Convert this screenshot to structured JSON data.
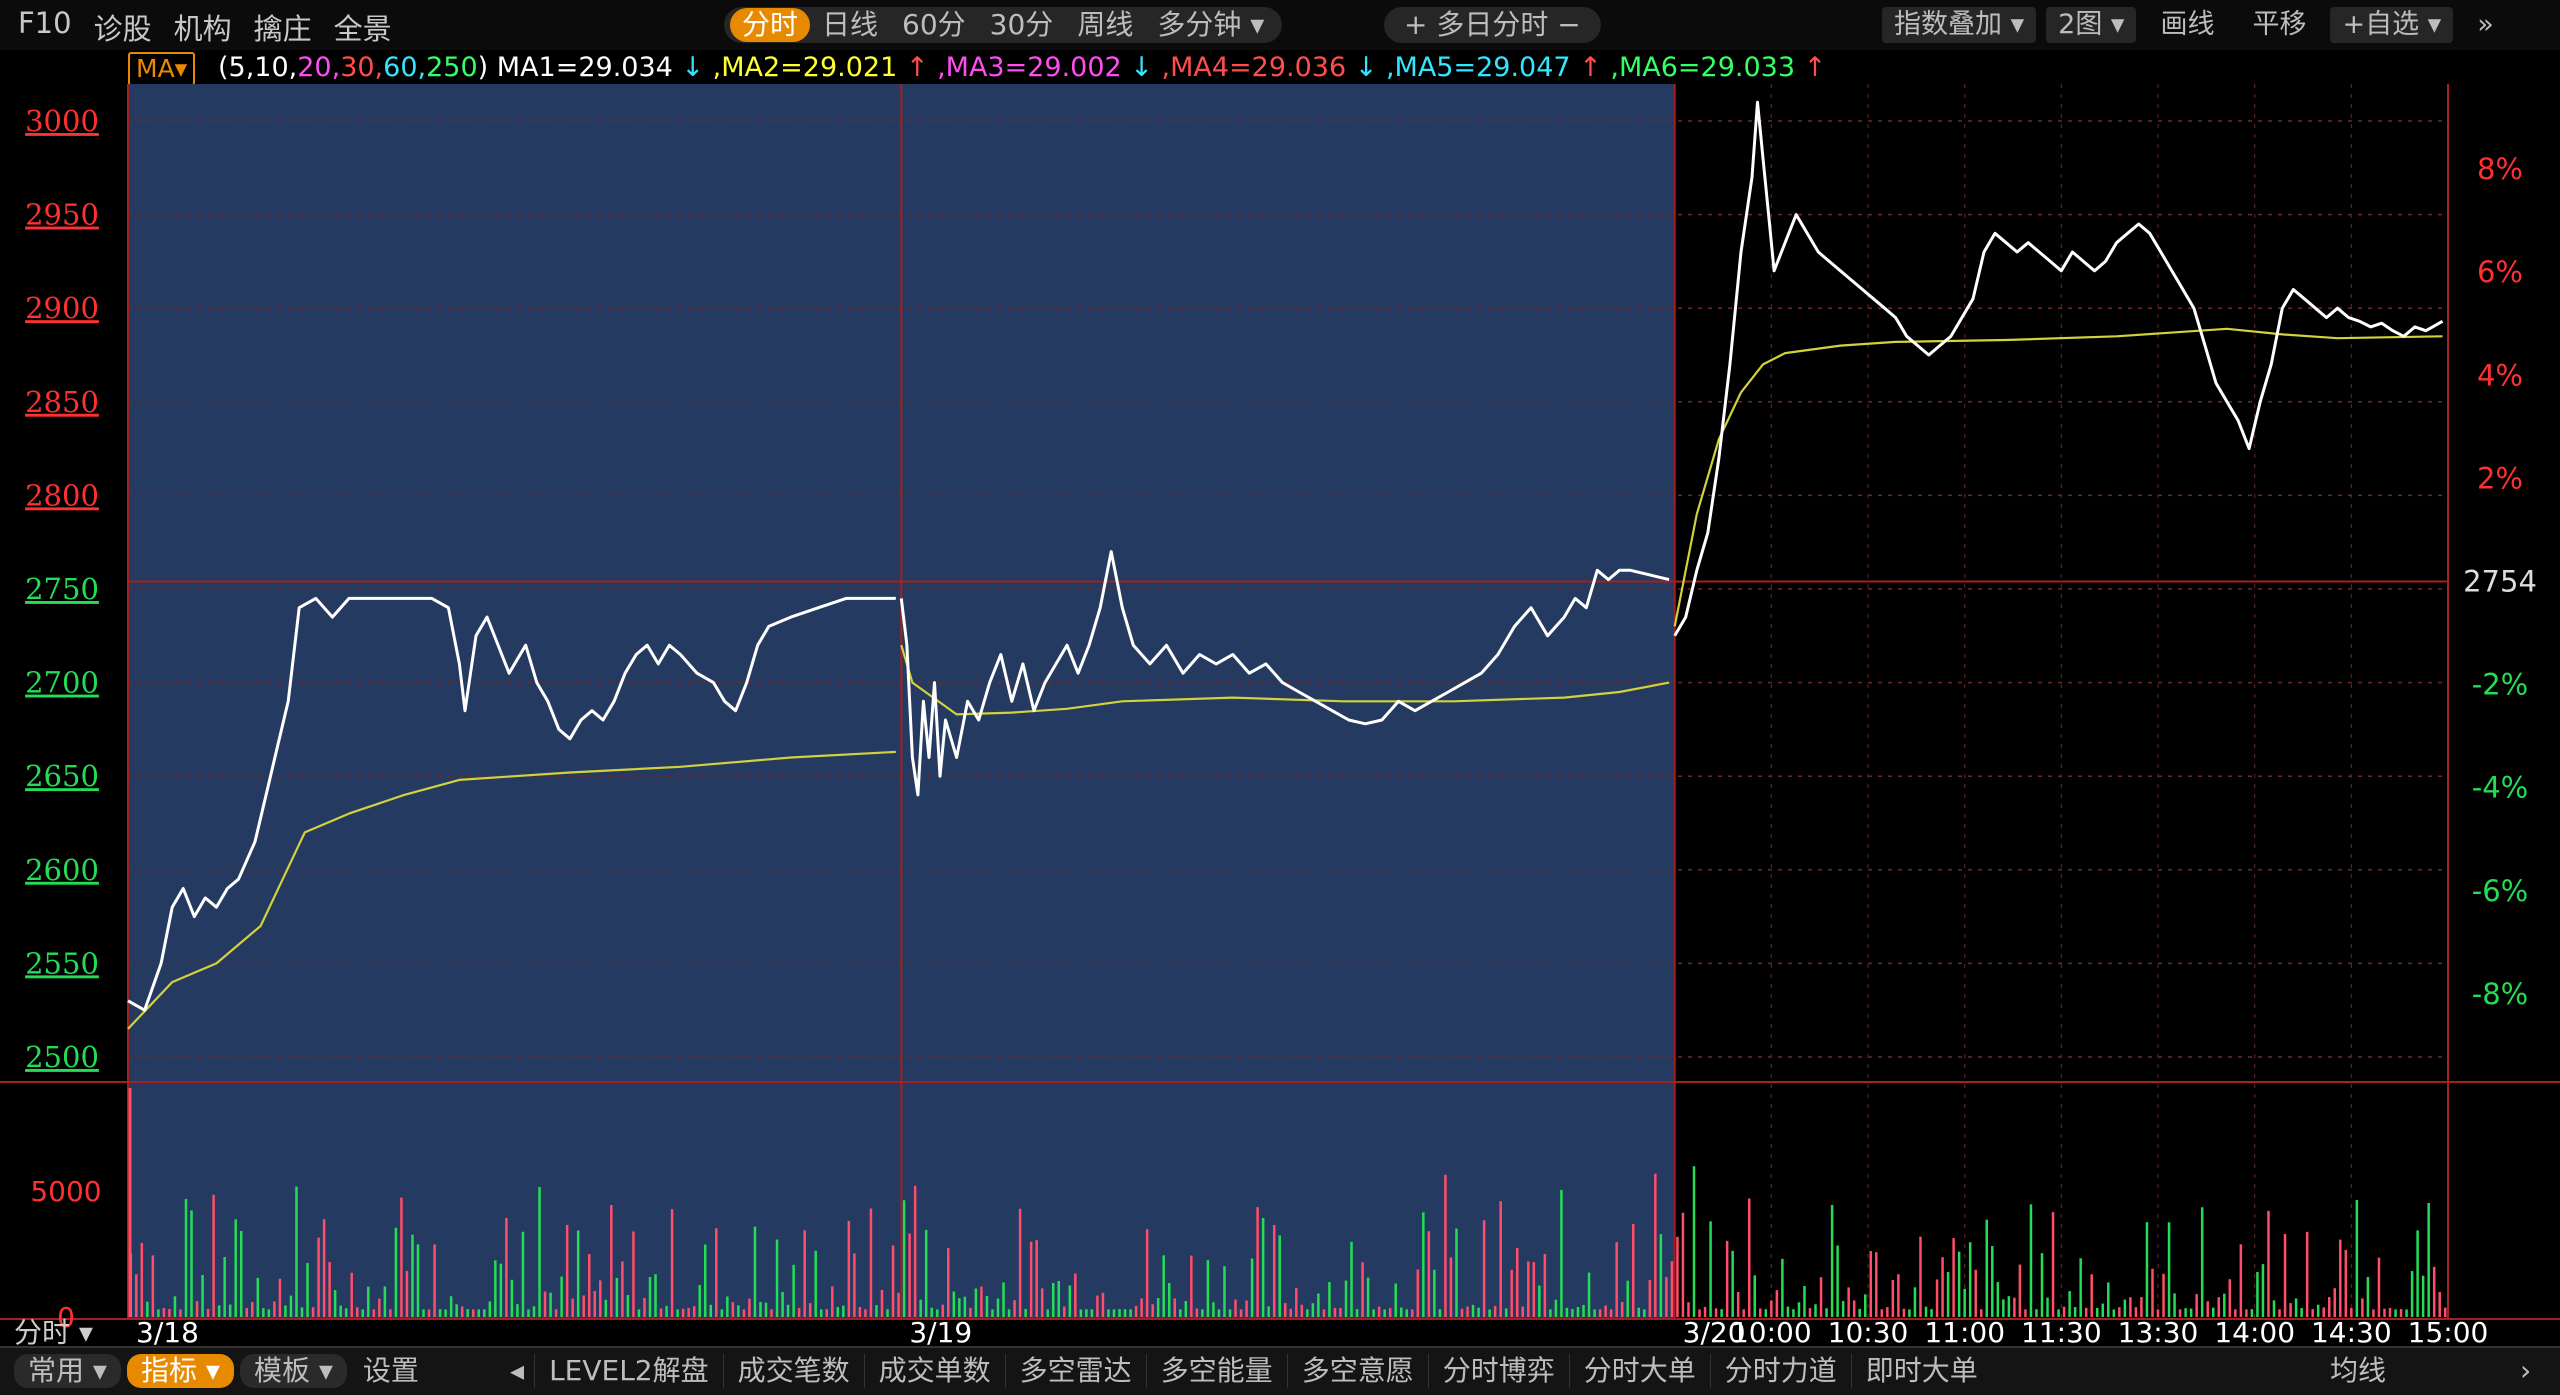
{
  "toolbar": {
    "left": [
      "F10",
      "诊股",
      "机构",
      "擒庄",
      "全景"
    ],
    "periods": [
      {
        "label": "分时",
        "active": true
      },
      {
        "label": "日线",
        "active": false
      },
      {
        "label": "60分",
        "active": false
      },
      {
        "label": "30分",
        "active": false
      },
      {
        "label": "周线",
        "active": false
      },
      {
        "label": "多分钟 ▾",
        "active": false
      }
    ],
    "multi_day": "+ 多日分时 −",
    "right": [
      {
        "label": "指数叠加 ▾",
        "pill": true
      },
      {
        "label": "2图 ▾",
        "pill": true
      },
      {
        "label": "画线",
        "pill": false
      },
      {
        "label": "平移",
        "pill": false
      },
      {
        "label": "+自选 ▾",
        "pill": true
      },
      {
        "label": "»",
        "pill": false
      }
    ]
  },
  "ma_bar": {
    "button": "MA▾",
    "params_prefix": "(",
    "params": [
      {
        "text": "5,10,",
        "color": "#ffffff"
      },
      {
        "text": "20,",
        "color": "#ff4df0"
      },
      {
        "text": "30,",
        "color": "#ff4d4d"
      },
      {
        "text": "60,",
        "color": "#33e6ff"
      },
      {
        "text": "250",
        "color": "#33ff66"
      }
    ],
    "params_suffix": ")",
    "values": [
      {
        "label": "MA1=29.034",
        "arrow": "↓",
        "color": "#ffffff",
        "arrow_color": "#33e6ff"
      },
      {
        "label": ",MA2=29.021",
        "arrow": "↑",
        "color": "#ffff33",
        "arrow_color": "#ff4d4d"
      },
      {
        "label": ",MA3=29.002",
        "arrow": "↓",
        "color": "#ff4df0",
        "arrow_color": "#33e6ff"
      },
      {
        "label": ",MA4=29.036",
        "arrow": "↓",
        "color": "#ff4d4d",
        "arrow_color": "#33e6ff"
      },
      {
        "label": ",MA5=29.047",
        "arrow": "↑",
        "color": "#33e6ff",
        "arrow_color": "#ff4d4d"
      },
      {
        "label": ",MA6=29.033",
        "arrow": "↑",
        "color": "#33ff66",
        "arrow_color": "#ff4d4d"
      }
    ]
  },
  "chart_data": {
    "type": "line",
    "days": [
      "3/18",
      "3/19",
      "3/20"
    ],
    "highlighted_days": [
      "3/18",
      "3/19"
    ],
    "left_axis": [
      3000,
      2950,
      2900,
      2850,
      2800,
      2750,
      2700,
      2650,
      2600,
      2550,
      2500
    ],
    "left_axis_range": [
      2500,
      3000
    ],
    "right_axis": [
      "8%",
      "6%",
      "4%",
      "2%",
      "2754",
      "-2%",
      "-4%",
      "-6%",
      "-8%"
    ],
    "reference_value": 2754,
    "time_labels": [
      "10:00",
      "10:30",
      "11:00",
      "11:30",
      "13:30",
      "14:00",
      "14:30",
      "15:00"
    ],
    "footer_label": "分时 ▾",
    "volume_axis": [
      5000,
      0
    ],
    "volume_range": [
      0,
      9000
    ],
    "series": [
      {
        "key": "price",
        "color": "#ffffff",
        "points": [
          [
            0,
            2530
          ],
          [
            3,
            2525
          ],
          [
            6,
            2550
          ],
          [
            8,
            2580
          ],
          [
            10,
            2590
          ],
          [
            12,
            2575
          ],
          [
            14,
            2585
          ],
          [
            16,
            2580
          ],
          [
            18,
            2590
          ],
          [
            20,
            2595
          ],
          [
            23,
            2615
          ],
          [
            25,
            2640
          ],
          [
            27,
            2665
          ],
          [
            29,
            2690
          ],
          [
            31,
            2740
          ],
          [
            34,
            2745
          ],
          [
            37,
            2735
          ],
          [
            40,
            2745
          ],
          [
            45,
            2745
          ],
          [
            50,
            2745
          ],
          [
            55,
            2745
          ],
          [
            58,
            2740
          ],
          [
            60,
            2710
          ],
          [
            61,
            2685
          ],
          [
            63,
            2725
          ],
          [
            65,
            2735
          ],
          [
            67,
            2720
          ],
          [
            69,
            2705
          ],
          [
            72,
            2720
          ],
          [
            74,
            2700
          ],
          [
            76,
            2690
          ],
          [
            78,
            2675
          ],
          [
            80,
            2670
          ],
          [
            82,
            2680
          ],
          [
            84,
            2685
          ],
          [
            86,
            2680
          ],
          [
            88,
            2690
          ],
          [
            90,
            2705
          ],
          [
            92,
            2715
          ],
          [
            94,
            2720
          ],
          [
            96,
            2710
          ],
          [
            98,
            2720
          ],
          [
            100,
            2715
          ],
          [
            103,
            2705
          ],
          [
            106,
            2700
          ],
          [
            108,
            2690
          ],
          [
            110,
            2685
          ],
          [
            112,
            2700
          ],
          [
            114,
            2720
          ],
          [
            116,
            2730
          ],
          [
            120,
            2735
          ],
          [
            125,
            2740
          ],
          [
            130,
            2745
          ],
          [
            135,
            2745
          ],
          [
            139,
            2745
          ],
          [
            140,
            2745
          ],
          [
            141,
            2720
          ],
          [
            142,
            2660
          ],
          [
            143,
            2640
          ],
          [
            144,
            2690
          ],
          [
            145,
            2660
          ],
          [
            146,
            2700
          ],
          [
            147,
            2650
          ],
          [
            148,
            2680
          ],
          [
            150,
            2660
          ],
          [
            152,
            2690
          ],
          [
            154,
            2680
          ],
          [
            156,
            2700
          ],
          [
            158,
            2715
          ],
          [
            160,
            2690
          ],
          [
            162,
            2710
          ],
          [
            164,
            2685
          ],
          [
            166,
            2700
          ],
          [
            168,
            2710
          ],
          [
            170,
            2720
          ],
          [
            172,
            2705
          ],
          [
            174,
            2720
          ],
          [
            176,
            2740
          ],
          [
            178,
            2770
          ],
          [
            180,
            2740
          ],
          [
            182,
            2720
          ],
          [
            185,
            2710
          ],
          [
            188,
            2720
          ],
          [
            191,
            2705
          ],
          [
            194,
            2715
          ],
          [
            197,
            2710
          ],
          [
            200,
            2715
          ],
          [
            203,
            2705
          ],
          [
            206,
            2710
          ],
          [
            209,
            2700
          ],
          [
            212,
            2695
          ],
          [
            215,
            2690
          ],
          [
            218,
            2685
          ],
          [
            221,
            2680
          ],
          [
            224,
            2678
          ],
          [
            227,
            2680
          ],
          [
            230,
            2690
          ],
          [
            233,
            2685
          ],
          [
            236,
            2690
          ],
          [
            239,
            2695
          ],
          [
            242,
            2700
          ],
          [
            245,
            2705
          ],
          [
            248,
            2715
          ],
          [
            251,
            2730
          ],
          [
            254,
            2740
          ],
          [
            257,
            2725
          ],
          [
            260,
            2735
          ],
          [
            262,
            2745
          ],
          [
            264,
            2740
          ],
          [
            266,
            2760
          ],
          [
            268,
            2755
          ],
          [
            270,
            2760
          ],
          [
            272,
            2760
          ],
          [
            279,
            2755
          ],
          [
            280,
            2725
          ],
          [
            282,
            2735
          ],
          [
            284,
            2760
          ],
          [
            286,
            2780
          ],
          [
            288,
            2820
          ],
          [
            290,
            2870
          ],
          [
            292,
            2930
          ],
          [
            294,
            2970
          ],
          [
            295,
            3010
          ],
          [
            296,
            2980
          ],
          [
            297,
            2950
          ],
          [
            298,
            2920
          ],
          [
            300,
            2935
          ],
          [
            302,
            2950
          ],
          [
            304,
            2940
          ],
          [
            306,
            2930
          ],
          [
            308,
            2925
          ],
          [
            310,
            2920
          ],
          [
            312,
            2915
          ],
          [
            314,
            2910
          ],
          [
            316,
            2905
          ],
          [
            318,
            2900
          ],
          [
            320,
            2895
          ],
          [
            322,
            2885
          ],
          [
            324,
            2880
          ],
          [
            326,
            2875
          ],
          [
            328,
            2880
          ],
          [
            330,
            2885
          ],
          [
            332,
            2895
          ],
          [
            334,
            2905
          ],
          [
            336,
            2930
          ],
          [
            338,
            2940
          ],
          [
            340,
            2935
          ],
          [
            342,
            2930
          ],
          [
            344,
            2935
          ],
          [
            346,
            2930
          ],
          [
            348,
            2925
          ],
          [
            350,
            2920
          ],
          [
            352,
            2930
          ],
          [
            354,
            2925
          ],
          [
            356,
            2920
          ],
          [
            358,
            2925
          ],
          [
            360,
            2935
          ],
          [
            362,
            2940
          ],
          [
            364,
            2945
          ],
          [
            366,
            2940
          ],
          [
            368,
            2930
          ],
          [
            370,
            2920
          ],
          [
            372,
            2910
          ],
          [
            374,
            2900
          ],
          [
            376,
            2880
          ],
          [
            378,
            2860
          ],
          [
            380,
            2850
          ],
          [
            382,
            2840
          ],
          [
            384,
            2825
          ],
          [
            386,
            2850
          ],
          [
            388,
            2870
          ],
          [
            390,
            2900
          ],
          [
            392,
            2910
          ],
          [
            394,
            2905
          ],
          [
            396,
            2900
          ],
          [
            398,
            2895
          ],
          [
            400,
            2900
          ],
          [
            402,
            2895
          ],
          [
            404,
            2893
          ],
          [
            406,
            2890
          ],
          [
            408,
            2892
          ],
          [
            410,
            2888
          ],
          [
            412,
            2885
          ],
          [
            414,
            2890
          ],
          [
            416,
            2888
          ],
          [
            419,
            2893
          ]
        ]
      },
      {
        "key": "average",
        "color": "#d2d23c",
        "points": [
          [
            0,
            2515
          ],
          [
            8,
            2540
          ],
          [
            16,
            2550
          ],
          [
            24,
            2570
          ],
          [
            28,
            2595
          ],
          [
            32,
            2620
          ],
          [
            40,
            2630
          ],
          [
            50,
            2640
          ],
          [
            60,
            2648
          ],
          [
            70,
            2650
          ],
          [
            80,
            2652
          ],
          [
            100,
            2655
          ],
          [
            120,
            2660
          ],
          [
            139,
            2663
          ],
          [
            140,
            2720
          ],
          [
            142,
            2700
          ],
          [
            150,
            2683
          ],
          [
            160,
            2684
          ],
          [
            170,
            2686
          ],
          [
            180,
            2690
          ],
          [
            200,
            2692
          ],
          [
            220,
            2690
          ],
          [
            240,
            2690
          ],
          [
            260,
            2692
          ],
          [
            270,
            2695
          ],
          [
            279,
            2700
          ],
          [
            280,
            2730
          ],
          [
            284,
            2790
          ],
          [
            288,
            2830
          ],
          [
            292,
            2855
          ],
          [
            296,
            2870
          ],
          [
            300,
            2876
          ],
          [
            310,
            2880
          ],
          [
            320,
            2882
          ],
          [
            340,
            2883
          ],
          [
            360,
            2885
          ],
          [
            380,
            2889
          ],
          [
            390,
            2886
          ],
          [
            400,
            2884
          ],
          [
            419,
            2885
          ]
        ]
      }
    ]
  }
}
